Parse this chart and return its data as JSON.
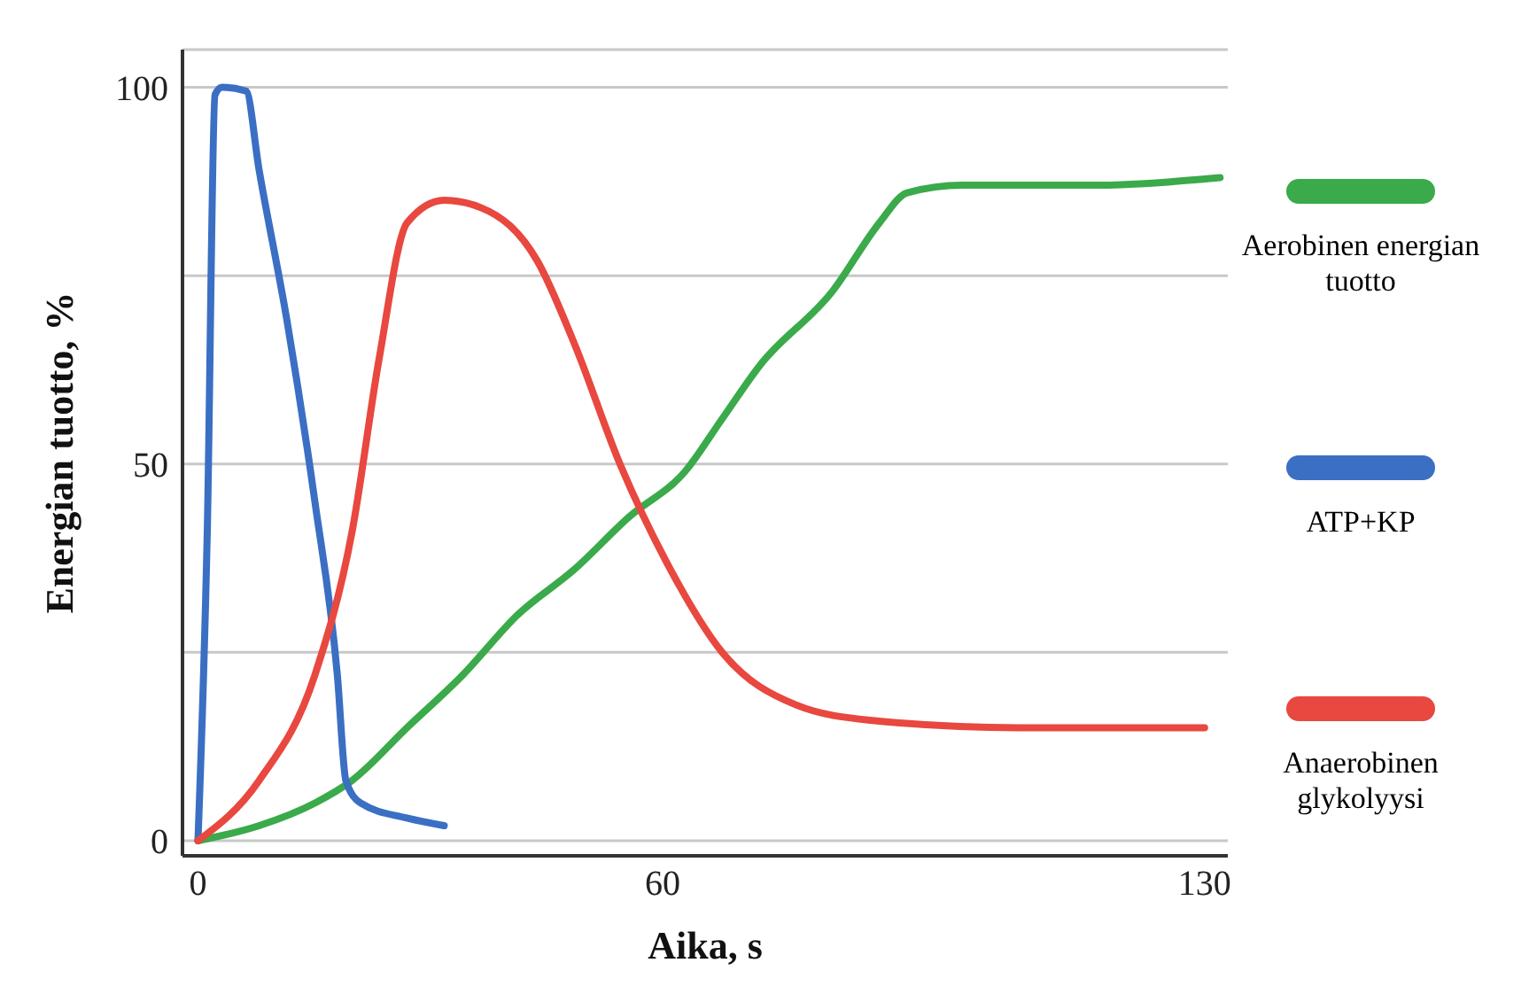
{
  "chart_data": {
    "type": "line",
    "xlabel": "Aika, s",
    "ylabel": "Energian tuotto, %",
    "xlim": [
      -2,
      133
    ],
    "xticks": [
      0,
      60,
      130
    ],
    "ylim": [
      -2,
      105
    ],
    "yticks": [
      0,
      {
        "value": 25,
        "label": null
      },
      50,
      {
        "value": 75,
        "label": null
      },
      100
    ],
    "grid": "y",
    "legend": "right",
    "marker": "none",
    "line_style": "solid",
    "series": [
      {
        "name": "Aerobinen energian tuotto",
        "color": "#3aaa4a",
        "x": [
          0,
          7.9,
          15.1,
          19.9,
          27,
          34.2,
          41.3,
          48.6,
          55.7,
          62.9,
          67.7,
          72.5,
          82,
          88,
          91.6,
          98.8,
          115.5,
          132
        ],
        "values": [
          0,
          2,
          5,
          8,
          15,
          22,
          30,
          36,
          43,
          49,
          56,
          63,
          73,
          82,
          86,
          87,
          87,
          88
        ]
      },
      {
        "name": "ATP+KP",
        "color": "#3a6fc4",
        "x": [
          0,
          1.2,
          2.2,
          3.1,
          6.2,
          7.9,
          11.5,
          15.1,
          18,
          19.1,
          21,
          27,
          31.8
        ],
        "values": [
          0,
          41,
          99,
          100,
          99.5,
          89,
          69,
          45,
          22,
          8,
          5,
          3,
          2
        ]
      },
      {
        "name": "Anaerobinen glykolyysi",
        "color": "#e8483f",
        "x": [
          0,
          7.9,
          15.1,
          19.9,
          23.4,
          27,
          31.8,
          36.6,
          43.8,
          48.6,
          54.5,
          60.5,
          67.7,
          77.3,
          86.8,
          106,
          130
        ],
        "values": [
          0,
          8,
          22,
          41,
          64,
          82,
          85,
          84,
          77,
          66,
          50,
          37,
          25,
          18,
          16,
          15,
          15
        ]
      }
    ]
  }
}
